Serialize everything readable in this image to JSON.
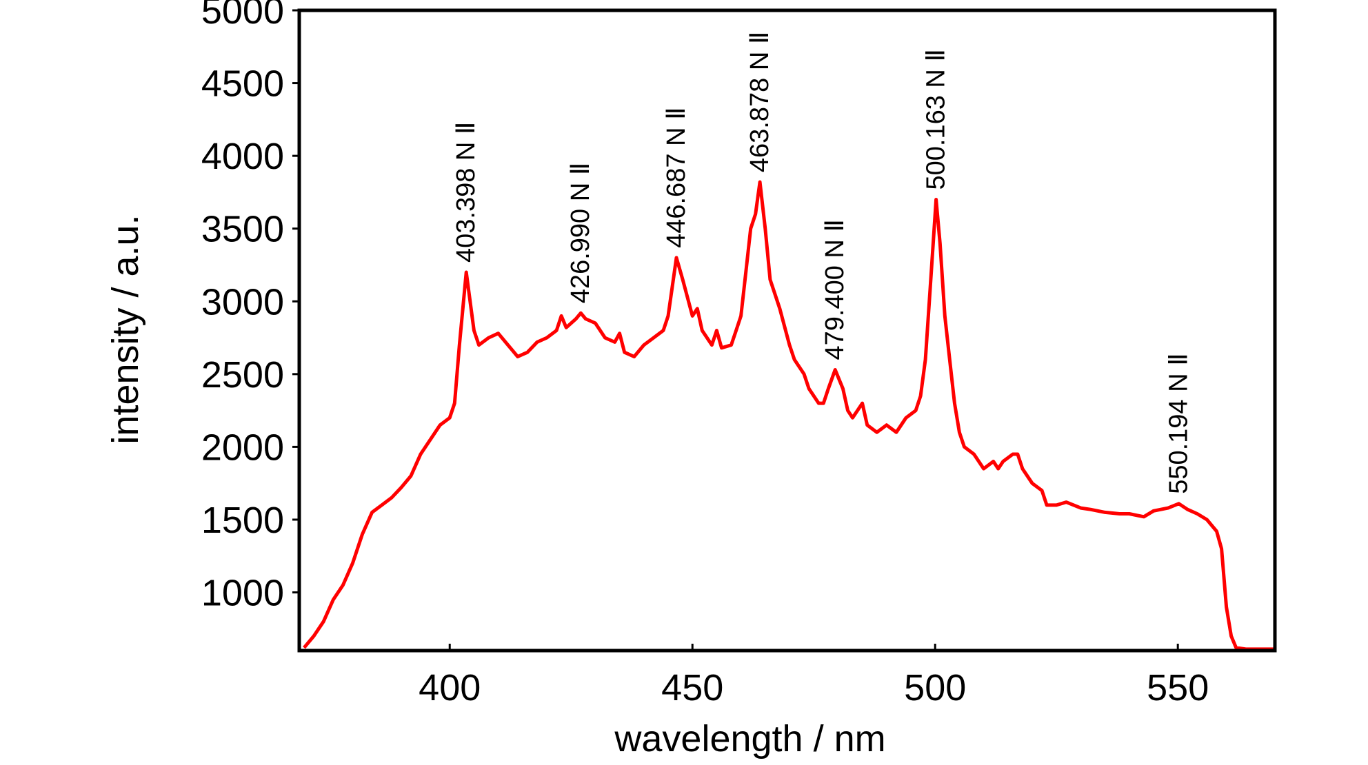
{
  "chart_data": {
    "type": "line",
    "xlabel": "wavelength / nm",
    "ylabel": "intensity / a.u.",
    "color": "#ff0000",
    "xlim": [
      369,
      570
    ],
    "ylim": [
      600,
      5000
    ],
    "xticks": [
      400,
      450,
      500,
      550
    ],
    "yticks": [
      1000,
      1500,
      2000,
      2500,
      3000,
      3500,
      4000,
      4500,
      5000
    ],
    "x": [
      370,
      372,
      374,
      376,
      378,
      380,
      382,
      384,
      386,
      388,
      390,
      392,
      394,
      396,
      398,
      400,
      401,
      402,
      403.4,
      404,
      405,
      406,
      408,
      410,
      412,
      414,
      416,
      418,
      420,
      422,
      423,
      424,
      426,
      427,
      428,
      430,
      432,
      434,
      435,
      436,
      438,
      440,
      442,
      444,
      445,
      446.7,
      448,
      450,
      451,
      452,
      454,
      455,
      456,
      458,
      459,
      460,
      461,
      462,
      463,
      463.9,
      465,
      466,
      467,
      468,
      470,
      471,
      472,
      473,
      474,
      476,
      477,
      478,
      479.4,
      481,
      482,
      483,
      484,
      485,
      486,
      488,
      490,
      492,
      494,
      496,
      497,
      498,
      499,
      500.2,
      501,
      502,
      503,
      504,
      505,
      506,
      508,
      510,
      512,
      513,
      514,
      516,
      517,
      518,
      520,
      522,
      523,
      525,
      527,
      530,
      532,
      535,
      538,
      540,
      543,
      545,
      548,
      550.2,
      552,
      554,
      556,
      558,
      559,
      560,
      561,
      562,
      564,
      570
    ],
    "values": [
      620,
      700,
      800,
      950,
      1050,
      1200,
      1400,
      1550,
      1600,
      1650,
      1720,
      1800,
      1950,
      2050,
      2150,
      2200,
      2300,
      2700,
      3200,
      3050,
      2800,
      2700,
      2750,
      2780,
      2700,
      2620,
      2650,
      2720,
      2750,
      2800,
      2900,
      2820,
      2880,
      2920,
      2880,
      2850,
      2750,
      2720,
      2780,
      2650,
      2620,
      2700,
      2750,
      2800,
      2900,
      3300,
      3150,
      2900,
      2950,
      2800,
      2700,
      2800,
      2680,
      2700,
      2800,
      2900,
      3200,
      3500,
      3600,
      3820,
      3500,
      3150,
      3050,
      2950,
      2700,
      2600,
      2550,
      2500,
      2400,
      2300,
      2300,
      2400,
      2530,
      2400,
      2250,
      2200,
      2250,
      2300,
      2150,
      2100,
      2150,
      2100,
      2200,
      2250,
      2350,
      2600,
      3100,
      3700,
      3400,
      2900,
      2600,
      2300,
      2100,
      2000,
      1950,
      1850,
      1900,
      1850,
      1900,
      1950,
      1950,
      1850,
      1750,
      1700,
      1600,
      1600,
      1620,
      1580,
      1570,
      1550,
      1540,
      1540,
      1520,
      1560,
      1580,
      1610,
      1570,
      1540,
      1500,
      1420,
      1300,
      900,
      700,
      620,
      610,
      610
    ],
    "annotations": [
      {
        "label": "403.398 N Ⅱ",
        "x": 403.398
      },
      {
        "label": "426.990 N Ⅱ",
        "x": 426.99
      },
      {
        "label": "446.687 N Ⅱ",
        "x": 446.687
      },
      {
        "label": "463.878 N Ⅱ",
        "x": 463.878
      },
      {
        "label": "479.400 N Ⅱ",
        "x": 479.4
      },
      {
        "label": "500.163 N Ⅱ",
        "x": 500.163
      },
      {
        "label": "550.194 N Ⅱ",
        "x": 550.194
      }
    ]
  }
}
